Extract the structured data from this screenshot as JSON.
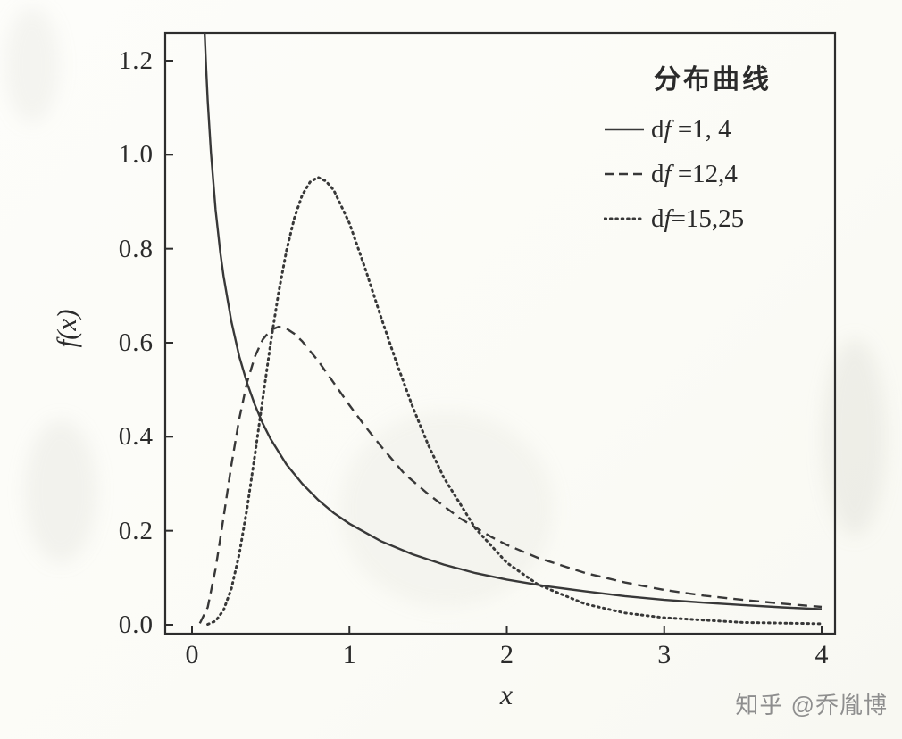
{
  "page": {
    "watermark": "知乎 @乔胤博"
  },
  "chart_data": {
    "type": "line",
    "title": "",
    "xlabel": "x",
    "ylabel": "f(x)",
    "xlim": [
      -0.17,
      4.08
    ],
    "ylim": [
      -0.02,
      1.26
    ],
    "grid": false,
    "line_color": "#383838",
    "xticks": {
      "values": [
        0,
        1,
        2,
        3,
        4
      ],
      "labels": [
        "0",
        "1",
        "2",
        "3",
        "4"
      ]
    },
    "yticks": {
      "values": [
        0,
        0.2,
        0.4,
        0.6,
        0.8,
        1.0,
        1.2
      ],
      "labels": [
        "0.0",
        "0.2",
        "0.4",
        "0.6",
        "0.8",
        "1.0",
        "1.2"
      ]
    },
    "legend": {
      "position": "top-right",
      "title": "分布曲线",
      "items": [
        {
          "pre": "d",
          "it": "f",
          "post": " =1, 4",
          "style": "solid"
        },
        {
          "pre": "d",
          "it": "f",
          "post": " =12,4",
          "style": "dashed"
        },
        {
          "pre": "d",
          "it": "f",
          "post": "=15,25",
          "style": "dotted"
        }
      ]
    },
    "series": [
      {
        "name": "df=1,4",
        "style": "solid",
        "x": [
          0.075,
          0.08,
          0.09,
          0.1,
          0.12,
          0.15,
          0.18,
          0.2,
          0.25,
          0.3,
          0.35,
          0.4,
          0.45,
          0.5,
          0.6,
          0.7,
          0.8,
          0.9,
          1.0,
          1.2,
          1.4,
          1.6,
          1.8,
          2.0,
          2.25,
          2.5,
          2.75,
          3.0,
          3.25,
          3.5,
          3.75,
          4.0
        ],
        "y": [
          1.307,
          1.262,
          1.182,
          1.115,
          1.005,
          0.883,
          0.792,
          0.742,
          0.645,
          0.571,
          0.514,
          0.467,
          0.428,
          0.395,
          0.341,
          0.3,
          0.266,
          0.238,
          0.215,
          0.178,
          0.15,
          0.128,
          0.11,
          0.096,
          0.082,
          0.071,
          0.061,
          0.053,
          0.047,
          0.042,
          0.037,
          0.033
        ]
      },
      {
        "name": "df=12,4",
        "style": "dashed",
        "x": [
          0.05,
          0.1,
          0.15,
          0.2,
          0.25,
          0.3,
          0.35,
          0.4,
          0.45,
          0.5,
          0.55,
          0.6,
          0.65,
          0.7,
          0.8,
          0.9,
          1.0,
          1.1,
          1.2,
          1.35,
          1.5,
          1.7,
          1.9,
          2.0,
          2.2,
          2.5,
          2.75,
          3.0,
          3.25,
          3.5,
          3.75,
          4.0
        ],
        "y": [
          0.003,
          0.037,
          0.119,
          0.228,
          0.34,
          0.438,
          0.516,
          0.571,
          0.607,
          0.627,
          0.634,
          0.63,
          0.619,
          0.603,
          0.562,
          0.515,
          0.467,
          0.422,
          0.38,
          0.321,
          0.278,
          0.227,
          0.187,
          0.17,
          0.142,
          0.11,
          0.09,
          0.074,
          0.062,
          0.053,
          0.045,
          0.038
        ]
      },
      {
        "name": "df=15,25",
        "style": "dotted",
        "x": [
          0.1,
          0.15,
          0.2,
          0.25,
          0.3,
          0.35,
          0.4,
          0.45,
          0.5,
          0.55,
          0.6,
          0.65,
          0.7,
          0.75,
          0.8,
          0.85,
          0.9,
          1.0,
          1.1,
          1.2,
          1.3,
          1.4,
          1.5,
          1.6,
          1.8,
          2.0,
          2.2,
          2.5,
          2.75,
          3.0,
          3.5,
          4.0
        ],
        "y": [
          0.001,
          0.008,
          0.031,
          0.077,
          0.15,
          0.248,
          0.362,
          0.482,
          0.6,
          0.706,
          0.796,
          0.865,
          0.914,
          0.942,
          0.952,
          0.944,
          0.925,
          0.854,
          0.758,
          0.655,
          0.557,
          0.465,
          0.383,
          0.313,
          0.205,
          0.132,
          0.085,
          0.044,
          0.025,
          0.015,
          0.005,
          0.002
        ]
      }
    ]
  }
}
